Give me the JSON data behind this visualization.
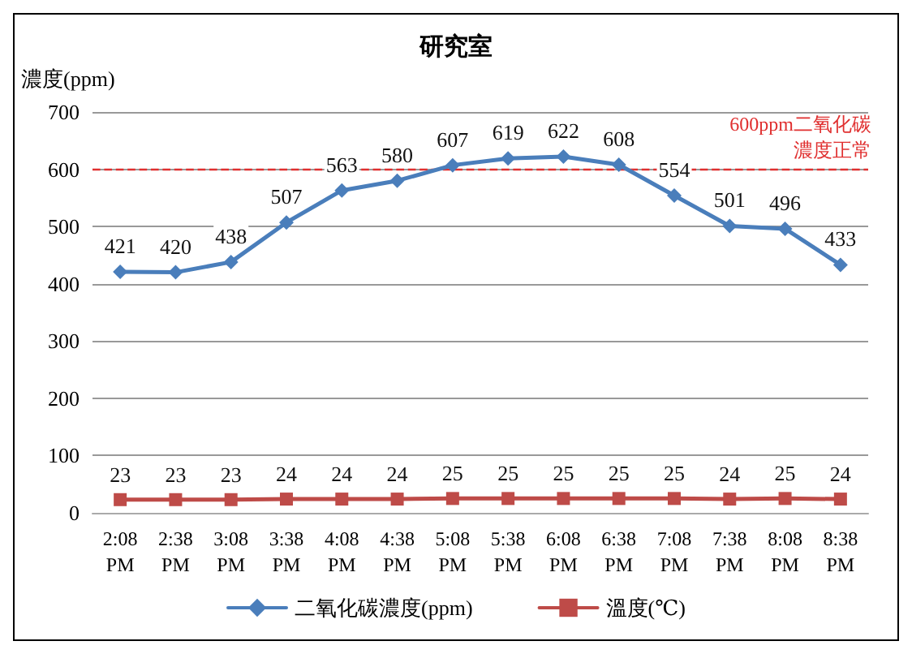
{
  "chart_data": {
    "type": "line",
    "title": "研究室",
    "ylabel": "濃度(ppm)",
    "categories": [
      "2:08 PM",
      "2:38 PM",
      "3:08 PM",
      "3:38 PM",
      "4:08 PM",
      "4:38 PM",
      "5:08 PM",
      "5:38 PM",
      "6:08 PM",
      "6:38 PM",
      "7:08 PM",
      "7:38 PM",
      "8:08 PM",
      "8:38 PM"
    ],
    "series": [
      {
        "name": "二氧化碳濃度(ppm)",
        "color": "#4a7ebb",
        "marker": "diamond",
        "values": [
          421,
          420,
          438,
          507,
          563,
          580,
          607,
          619,
          622,
          608,
          554,
          501,
          496,
          433
        ]
      },
      {
        "name": "溫度(℃)",
        "color": "#be4b48",
        "marker": "square",
        "values": [
          23,
          23,
          23,
          24,
          24,
          24,
          25,
          25,
          25,
          25,
          25,
          24,
          25,
          24
        ]
      }
    ],
    "ylim": [
      0,
      700
    ],
    "yticks": [
      0,
      100,
      200,
      300,
      400,
      500,
      600,
      700
    ],
    "grid": "y",
    "legend": "bottom",
    "data_labels": true,
    "line_style": "solid",
    "ref_lines": [
      {
        "axis": "y",
        "value": 600,
        "label": "600ppm二氧化碳濃度正常",
        "color": "#e03030",
        "line_style": "dashed"
      }
    ]
  }
}
